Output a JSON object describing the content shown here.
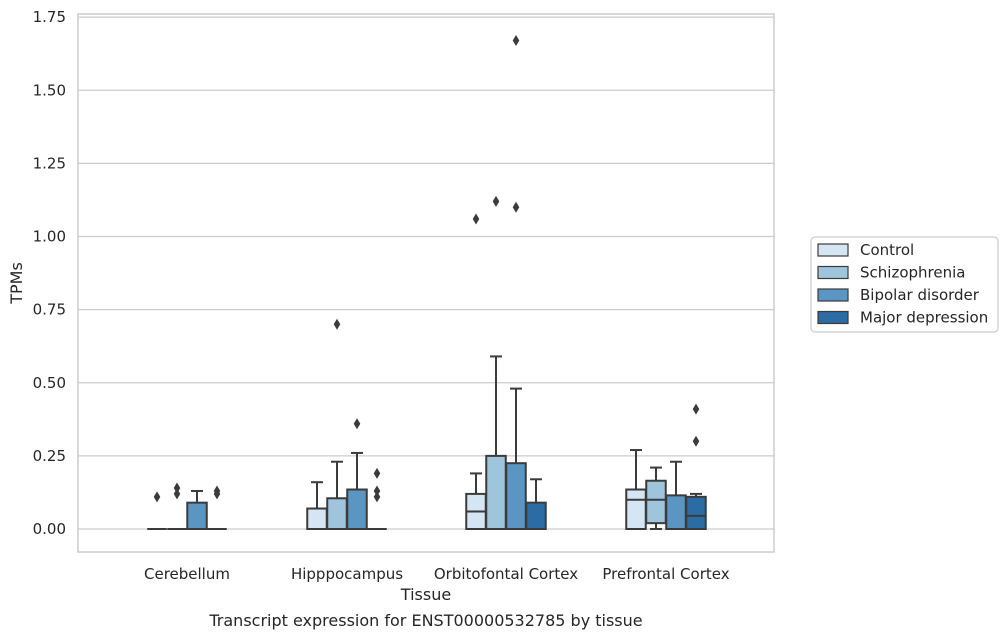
{
  "caption": "Transcript expression for ENST00000532785 by tissue",
  "chart_data": {
    "type": "box",
    "xlabel": "Tissue",
    "ylabel": "TPMs",
    "ylim": [
      -0.08,
      1.75
    ],
    "yticks": [
      "0.00",
      "0.25",
      "0.50",
      "0.75",
      "1.00",
      "1.25",
      "1.50",
      "1.75"
    ],
    "grid": "horizontal",
    "legend_position": "right",
    "categories": [
      "Cerebellum",
      "Hipppocampus",
      "Orbitofontal Cortex",
      "Prefrontal Cortex"
    ],
    "series": [
      {
        "name": "Control",
        "color": "#d6e5f3",
        "boxes": [
          {
            "q1": 0,
            "median": 0,
            "q3": 0,
            "whisker_low": 0,
            "whisker_high": 0,
            "outliers": [
              0.11
            ]
          },
          {
            "q1": 0,
            "median": 0,
            "q3": 0.07,
            "whisker_low": 0,
            "whisker_high": 0.16,
            "outliers": []
          },
          {
            "q1": 0,
            "median": 0.06,
            "q3": 0.12,
            "whisker_low": 0,
            "whisker_high": 0.19,
            "outliers": [
              1.06
            ]
          },
          {
            "q1": 0,
            "median": 0.1,
            "q3": 0.135,
            "whisker_low": 0,
            "whisker_high": 0.27,
            "outliers": []
          }
        ]
      },
      {
        "name": "Schizophrenia",
        "color": "#9fc5dc",
        "boxes": [
          {
            "q1": 0,
            "median": 0,
            "q3": 0,
            "whisker_low": 0,
            "whisker_high": 0,
            "outliers": [
              0.12,
              0.14
            ]
          },
          {
            "q1": 0,
            "median": 0,
            "q3": 0.105,
            "whisker_low": 0,
            "whisker_high": 0.23,
            "outliers": [
              0.7
            ]
          },
          {
            "q1": 0,
            "median": 0,
            "q3": 0.25,
            "whisker_low": 0,
            "whisker_high": 0.59,
            "outliers": [
              1.12
            ]
          },
          {
            "q1": 0.02,
            "median": 0.1,
            "q3": 0.165,
            "whisker_low": 0,
            "whisker_high": 0.21,
            "outliers": []
          }
        ]
      },
      {
        "name": "Bipolar disorder",
        "color": "#5b96c2",
        "boxes": [
          {
            "q1": 0,
            "median": 0,
            "q3": 0.09,
            "whisker_low": 0,
            "whisker_high": 0.13,
            "outliers": []
          },
          {
            "q1": 0,
            "median": 0,
            "q3": 0.135,
            "whisker_low": 0,
            "whisker_high": 0.26,
            "outliers": [
              0.36
            ]
          },
          {
            "q1": 0,
            "median": 0,
            "q3": 0.225,
            "whisker_low": 0,
            "whisker_high": 0.48,
            "outliers": [
              1.1,
              1.67
            ]
          },
          {
            "q1": 0,
            "median": 0,
            "q3": 0.115,
            "whisker_low": 0,
            "whisker_high": 0.23,
            "outliers": []
          }
        ]
      },
      {
        "name": "Major depression",
        "color": "#2b6ca4",
        "boxes": [
          {
            "q1": 0,
            "median": 0,
            "q3": 0,
            "whisker_low": 0,
            "whisker_high": 0,
            "outliers": [
              0.12,
              0.13
            ]
          },
          {
            "q1": 0,
            "median": 0,
            "q3": 0,
            "whisker_low": 0,
            "whisker_high": 0,
            "outliers": [
              0.11,
              0.13,
              0.19
            ]
          },
          {
            "q1": 0,
            "median": 0,
            "q3": 0.09,
            "whisker_low": 0,
            "whisker_high": 0.17,
            "outliers": []
          },
          {
            "q1": 0,
            "median": 0.045,
            "q3": 0.11,
            "whisker_low": 0,
            "whisker_high": 0.12,
            "outliers": [
              0.3,
              0.41
            ]
          }
        ]
      }
    ]
  }
}
